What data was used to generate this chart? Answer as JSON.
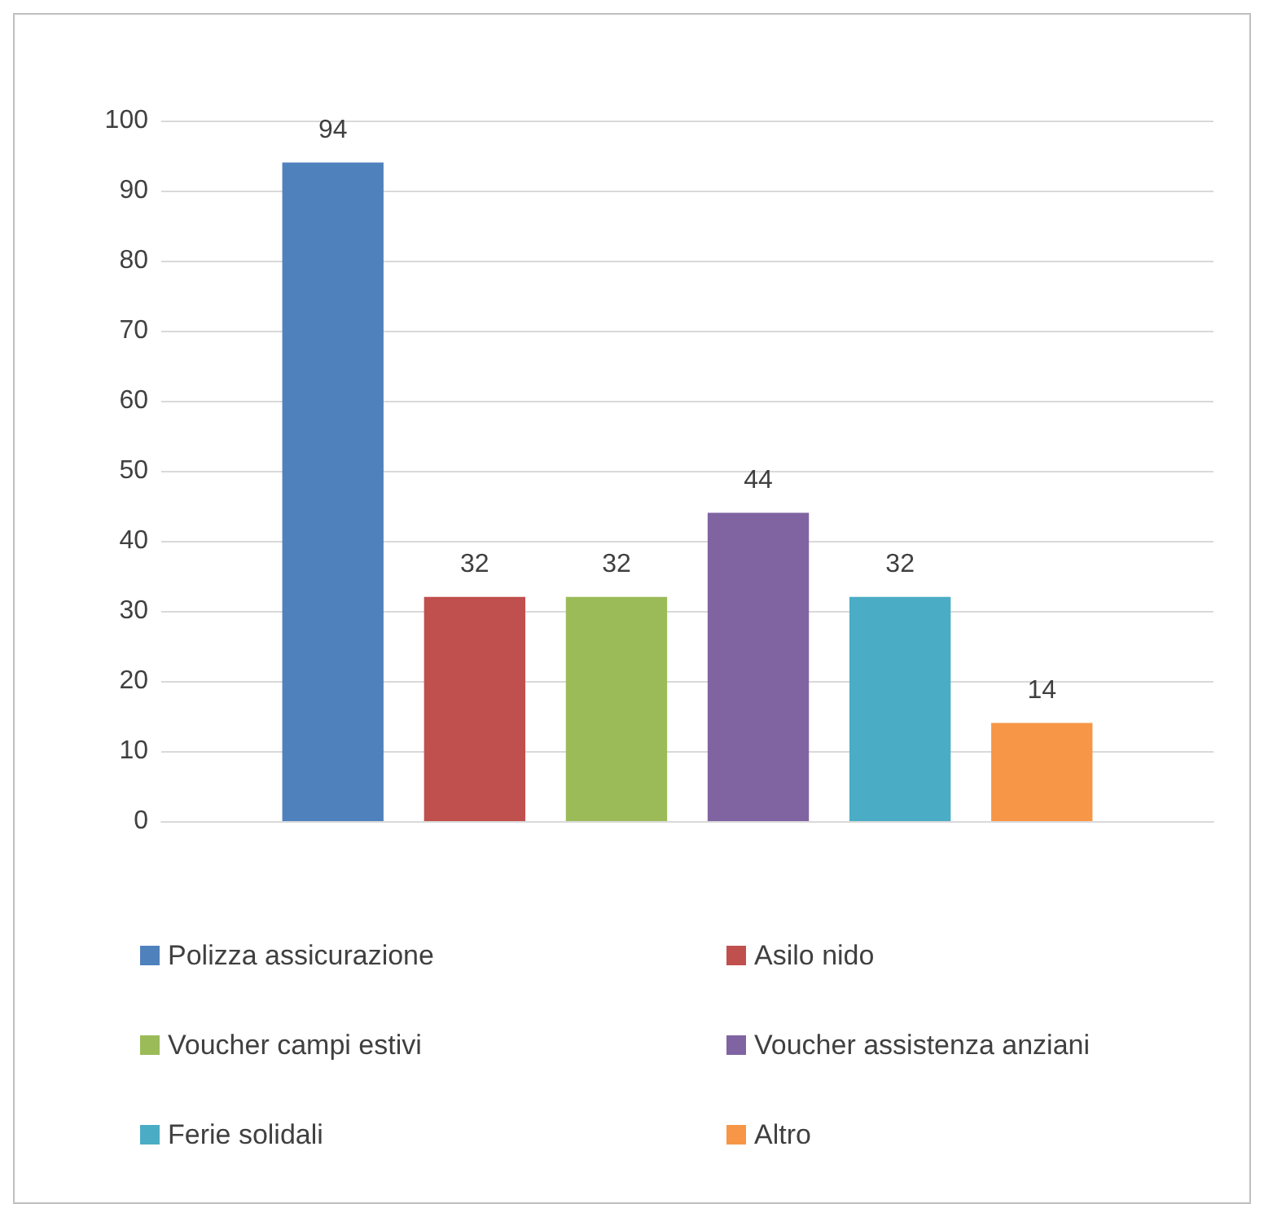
{
  "chart_data": {
    "type": "bar",
    "categories": [
      null
    ],
    "series": [
      {
        "name": "Polizza assicurazione",
        "color": "#4f81bd",
        "values": [
          94
        ]
      },
      {
        "name": "Asilo nido",
        "color": "#c0504d",
        "values": [
          32
        ]
      },
      {
        "name": "Voucher campi estivi",
        "color": "#9bbb59",
        "values": [
          32
        ]
      },
      {
        "name": "Voucher assistenza anziani",
        "color": "#8064a2",
        "values": [
          44
        ]
      },
      {
        "name": "Ferie solidali",
        "color": "#4bacc6",
        "values": [
          32
        ]
      },
      {
        "name": "Altro",
        "color": "#f79646",
        "values": [
          14
        ]
      }
    ],
    "ylim": [
      0,
      100
    ],
    "yticks": [
      0,
      10,
      20,
      30,
      40,
      50,
      60,
      70,
      80,
      90,
      100
    ],
    "grid": "y",
    "legend": "bottom",
    "data_labels": true
  }
}
